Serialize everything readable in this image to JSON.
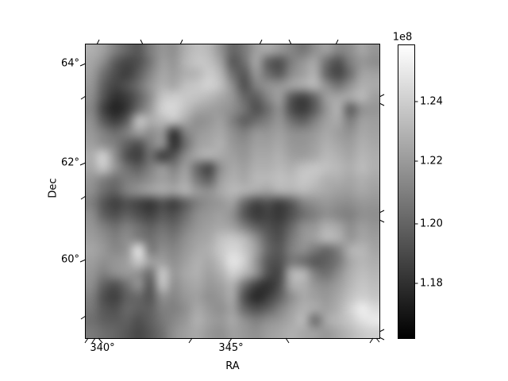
{
  "chart_data": {
    "type": "heatmap",
    "title": "",
    "xlabel": "RA",
    "ylabel": "Dec",
    "x_ticks": [
      {
        "label": "340°",
        "value_deg": 340
      },
      {
        "label": "345°",
        "value_deg": 345
      }
    ],
    "y_ticks": [
      {
        "label": "64°",
        "value_deg": 64
      },
      {
        "label": "62°",
        "value_deg": 62
      },
      {
        "label": "60°",
        "value_deg": 60
      }
    ],
    "x_range_deg": [
      339.4,
      350.6
    ],
    "y_range_deg": [
      58.4,
      64.4
    ],
    "grid": "off",
    "legend": "none",
    "colormap": "gray",
    "colorbar": {
      "offset_label": "1e8",
      "ticks": [
        {
          "label": "1.24",
          "value_e8": 1.24
        },
        {
          "label": "1.22",
          "value_e8": 1.22
        },
        {
          "label": "1.20",
          "value_e8": 1.2
        },
        {
          "label": "1.18",
          "value_e8": 1.18
        }
      ],
      "vmin": 116200000,
      "vmax": 125900000,
      "orientation": "vertical",
      "position": "right"
    },
    "grid_shape": [
      25,
      25
    ],
    "values_note": "25x25 estimated grayscale intensities (00=black=vmin, ff=white=vmax), row 0 = top (Dec ~64.4), col 0 = left (RA ~339.4)",
    "values_hex_rows": [
      "b0a08066587e9690b0c0b892667aa0a898867690a0868ea696",
      "a68c5c4650769e96b6c6c2a25870a662507e96a66e507e968e",
      "9e704e3e5c86a69eaeb6ccb67058966e5a8aa0b064466ea2a2",
      "966044527096b0a8c0c8d2c08e50809296a2aab6907492b0aa",
      "8e54303c608ec4cec8c2b8a896685c869e5842669ea6a8b8a0",
      "864222386e9ad0d8c0a8a09a8e74506e904e3a5c96b0609096",
      "905a3e5ec0aeb8c0a89096a080606e8096706080a0a87ea09e",
      "98806e809e8e96388096a0a890809696a0908e98a89e92a8a2",
      "a0908060507e90306e9ea8b09890a0a0a89896a0b0a69eb0a8",
      "aed09050406e40568ea6b0a8a096a8a8b0a09ea8b8b0a6b6ae",
      "a8c69670608096809e684890a8a0b0b0b8b0c0c6c0b8aebcb0",
      "9680707e8090a096a878609eb0a8b8b8c0bcc8c0b0aea6b0a8",
      "8e6e6080909ea8a0b09890a8b8b0a8a0b0b0b8b0a8a09ea8a0",
      "805640504438504060809098a06846504058809098908e9896",
      "8e605060504258506e8e98a090583a4238506e80908680908e",
      "96807080706070668096a0a8a080605046688e98b0a68e9e96",
      "9e90808e8070807890a0a8c0c8b89060507896a0b8b096a69e",
      "a6988896e07e8e8698a8b0c8d8c8a06858808e786880b0b8a6",
      "9e9096a0c8a0a090a0b0a8c0e6d09658507870586078a6b6ae",
      "96808e989070c898a8b0a0b0d0b8905048b0b880708eaebeb6",
      "8e6050709058c090a0a898a0b070403050a8b0968e9eb6c6be",
      "805040606855908698a09098a850283c608ea8a098a8c0d0c6",
      "785850686060808090a89890a0685060809eb0a8a0b0d0eedc",
      "70605c605060788898b0a098a890808e98a8b870a8b8c8e0ea",
      "7a6e665848587090a0a89890a098909ea6b0a8a098a8b8c8d0"
    ]
  }
}
